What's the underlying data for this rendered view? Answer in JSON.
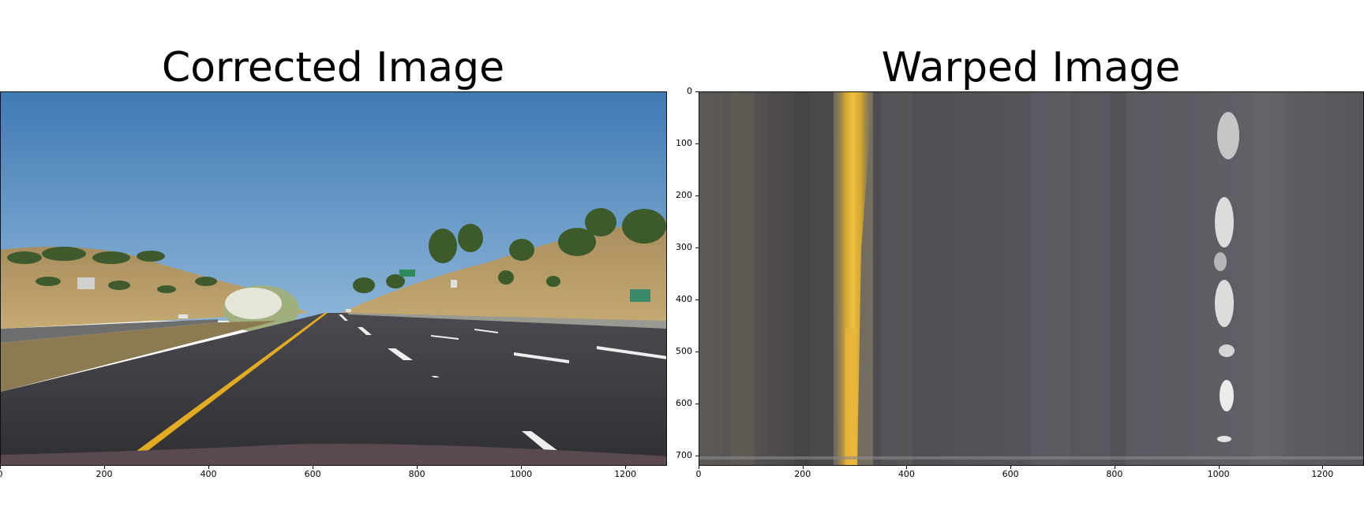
{
  "left_panel": {
    "title": "Corrected Image",
    "x_ticks": [
      "0",
      "200",
      "400",
      "600",
      "800",
      "1000",
      "1200"
    ],
    "x_tick_values": [
      0,
      200,
      400,
      600,
      800,
      1000,
      1200
    ],
    "x_max": 1280,
    "scene": "dashcam-highway-road"
  },
  "right_panel": {
    "title": "Warped Image",
    "x_ticks": [
      "0",
      "200",
      "400",
      "600",
      "800",
      "1000",
      "1200"
    ],
    "x_tick_values": [
      0,
      200,
      400,
      600,
      800,
      1000,
      1200
    ],
    "y_ticks": [
      "0",
      "100",
      "200",
      "300",
      "400",
      "500",
      "600",
      "700"
    ],
    "y_tick_values": [
      0,
      100,
      200,
      300,
      400,
      500,
      600,
      700
    ],
    "x_max": 1280,
    "y_max": 720,
    "scene": "birds-eye-lane-lines"
  },
  "colors": {
    "sky_top": "#3d78b3",
    "sky_bottom": "#8fb6d9",
    "road": "#3a3a3f",
    "yellow_lane": "#e0a81e",
    "white_lane": "#f2f2f2",
    "hillside": "#b59a66",
    "warped_bg": "#55555c"
  }
}
